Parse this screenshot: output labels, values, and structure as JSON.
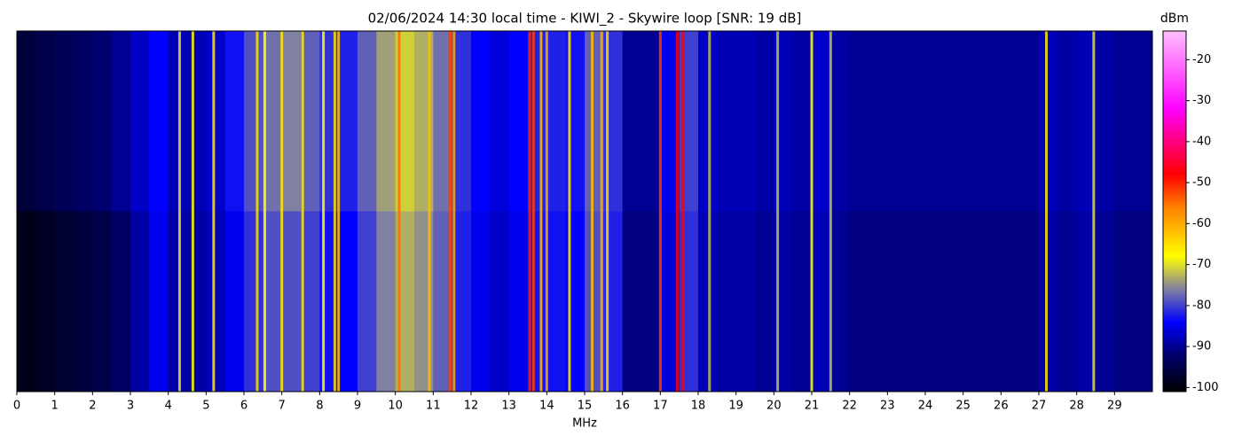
{
  "chart_data": {
    "type": "heatmap",
    "title": "02/06/2024 14:30 local time - KIWI_2 - Skywire loop [SNR: 19 dB]",
    "xlabel": "MHz",
    "colorbar_label": "dBm",
    "xlim": [
      0,
      30
    ],
    "xticks": [
      0,
      1,
      2,
      3,
      4,
      5,
      6,
      7,
      8,
      9,
      10,
      11,
      12,
      13,
      14,
      15,
      16,
      17,
      18,
      19,
      20,
      21,
      22,
      23,
      24,
      25,
      26,
      27,
      28,
      29
    ],
    "zlim": [
      -101,
      -13
    ],
    "zticks": [
      -100,
      -90,
      -80,
      -70,
      -60,
      -50,
      -40,
      -30,
      -20
    ],
    "colormap": [
      {
        "value": -101,
        "color": "#000000"
      },
      {
        "value": -92,
        "color": "#00006e"
      },
      {
        "value": -84,
        "color": "#0000ff"
      },
      {
        "value": -76,
        "color": "#8080a0"
      },
      {
        "value": -68,
        "color": "#ffff00"
      },
      {
        "value": -56,
        "color": "#ff8000"
      },
      {
        "value": -48,
        "color": "#ff0000"
      },
      {
        "value": -32,
        "color": "#ff00ff"
      },
      {
        "value": -13,
        "color": "#ffc0ff"
      }
    ],
    "bins": [
      0,
      0.5,
      1,
      1.5,
      2,
      2.5,
      3,
      3.5,
      4,
      4.5,
      5,
      5.5,
      6,
      6.5,
      7,
      7.5,
      8,
      8.5,
      9,
      9.5,
      10,
      10.5,
      11,
      11.5,
      12,
      12.5,
      13,
      13.5,
      14,
      14.5,
      15,
      15.5,
      16,
      16.5,
      17,
      17.5,
      18,
      18.5,
      19,
      19.5,
      20,
      20.5,
      21,
      21.5,
      22,
      22.5,
      23,
      23.5,
      24,
      24.5,
      25,
      25.5,
      26,
      26.5,
      27,
      27.5,
      28,
      28.5,
      29,
      29.5,
      30
    ],
    "values": [
      [
        -96,
        -95,
        -94,
        -93,
        -92,
        -90,
        -87,
        -84,
        -88,
        -88,
        -87,
        -83,
        -79,
        -77,
        -76,
        -78,
        -81,
        -82,
        -78,
        -74,
        -71,
        -73,
        -77,
        -81,
        -84,
        -86,
        -84,
        -82,
        -82,
        -83,
        -78,
        -81,
        -90,
        -90,
        -85,
        -80,
        -87,
        -88,
        -88,
        -89,
        -88,
        -89,
        -87,
        -89,
        -90,
        -90,
        -90,
        -90,
        -90,
        -90,
        -90,
        -90,
        -90,
        -90,
        -88,
        -89,
        -88,
        -89,
        -90,
        -90
      ],
      [
        -99,
        -98,
        -97,
        -96,
        -95,
        -93,
        -89,
        -85,
        -89,
        -89,
        -88,
        -85,
        -81,
        -79,
        -79,
        -80,
        -83,
        -84,
        -80,
        -76,
        -73,
        -75,
        -78,
        -82,
        -85,
        -87,
        -85,
        -83,
        -83,
        -84,
        -79,
        -82,
        -91,
        -91,
        -86,
        -81,
        -88,
        -89,
        -89,
        -90,
        -89,
        -90,
        -88,
        -90,
        -91,
        -91,
        -91,
        -91,
        -91,
        -91,
        -91,
        -91,
        -91,
        -91,
        -89,
        -90,
        -89,
        -90,
        -91,
        -91
      ]
    ],
    "signals": [
      {
        "freq": 4.3,
        "level": -70
      },
      {
        "freq": 4.65,
        "level": -68
      },
      {
        "freq": 5.2,
        "level": -66
      },
      {
        "freq": 6.35,
        "level": -65
      },
      {
        "freq": 6.55,
        "level": -68
      },
      {
        "freq": 7.0,
        "level": -66
      },
      {
        "freq": 7.55,
        "level": -66
      },
      {
        "freq": 8.1,
        "level": -68
      },
      {
        "freq": 8.4,
        "level": -65
      },
      {
        "freq": 8.5,
        "level": -62
      },
      {
        "freq": 10.1,
        "level": -55
      },
      {
        "freq": 10.9,
        "level": -62
      },
      {
        "freq": 11.45,
        "level": -52
      },
      {
        "freq": 11.55,
        "level": -60
      },
      {
        "freq": 13.55,
        "level": -50
      },
      {
        "freq": 13.65,
        "level": -52
      },
      {
        "freq": 13.85,
        "level": -62
      },
      {
        "freq": 14.0,
        "level": -60
      },
      {
        "freq": 14.6,
        "level": -66
      },
      {
        "freq": 15.2,
        "level": -62
      },
      {
        "freq": 15.45,
        "level": -60
      },
      {
        "freq": 15.6,
        "level": -65
      },
      {
        "freq": 17.0,
        "level": -52
      },
      {
        "freq": 17.45,
        "level": -48
      },
      {
        "freq": 17.6,
        "level": -48
      },
      {
        "freq": 18.3,
        "level": -72
      },
      {
        "freq": 20.1,
        "level": -72
      },
      {
        "freq": 21.0,
        "level": -68
      },
      {
        "freq": 21.5,
        "level": -72
      },
      {
        "freq": 27.2,
        "level": -66
      },
      {
        "freq": 28.45,
        "level": -70
      }
    ]
  }
}
